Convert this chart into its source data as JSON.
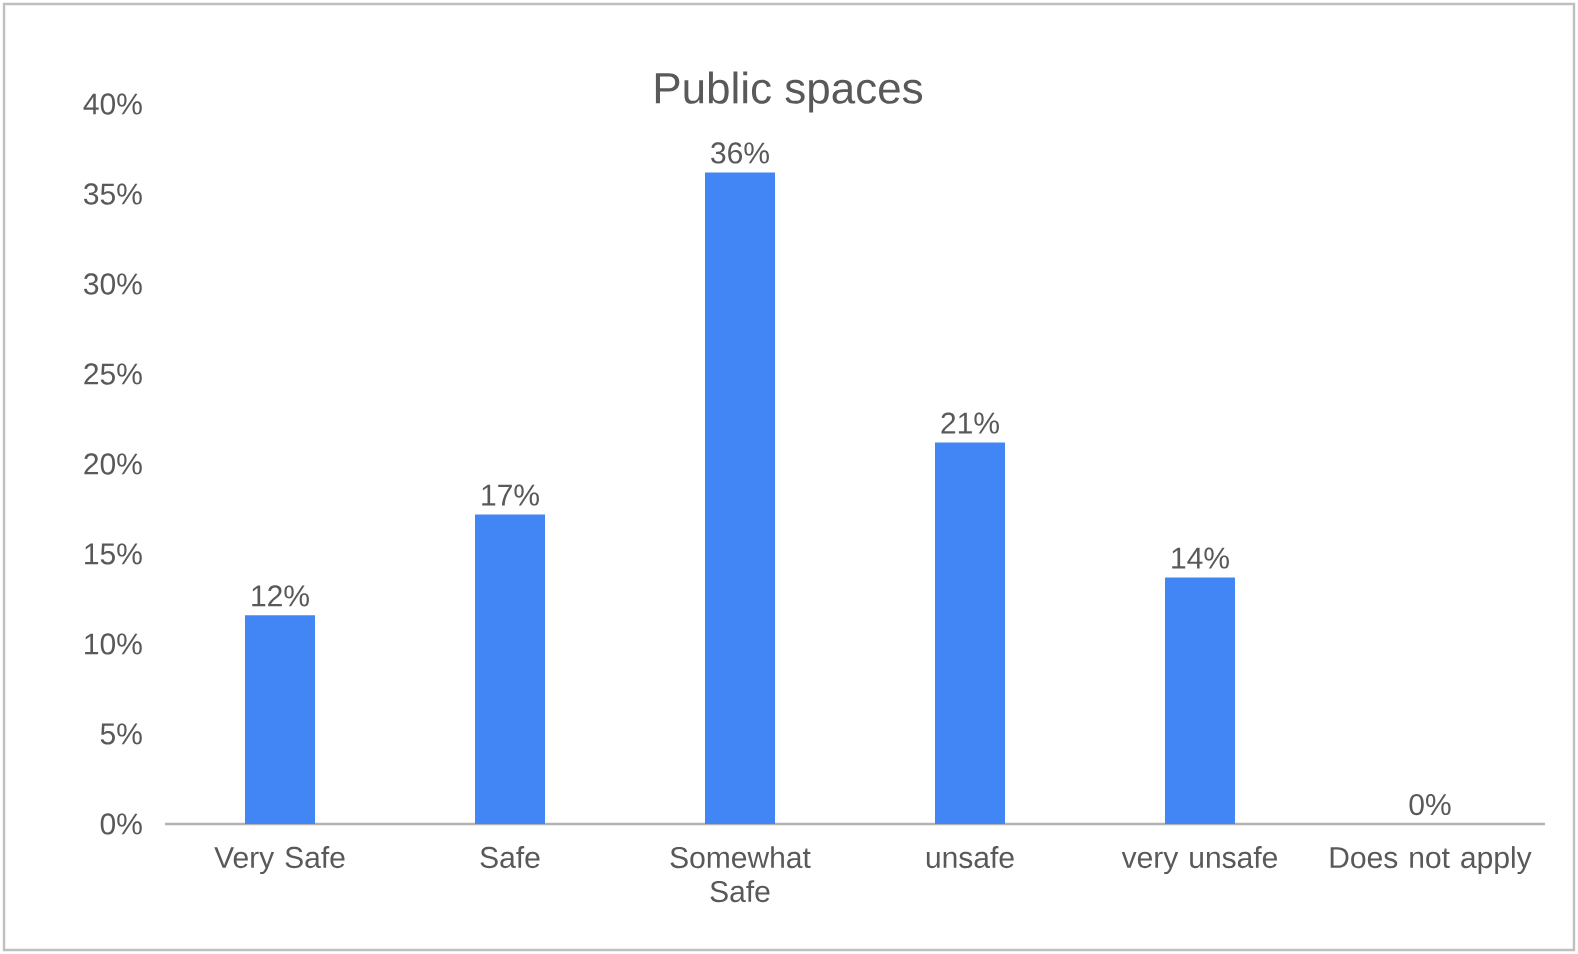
{
  "chart_data": {
    "type": "bar",
    "title": "Public spaces",
    "categories": [
      "Very Safe",
      "Safe",
      "Somewhat Safe",
      "unsafe",
      "very unsafe",
      "Does not apply"
    ],
    "values": [
      11.6,
      17.2,
      36.2,
      21.2,
      13.7,
      0
    ],
    "value_labels": [
      "12%",
      "17%",
      "36%",
      "21%",
      "14%",
      "0%"
    ],
    "color": "#4285f4",
    "ylim": [
      0,
      40
    ],
    "yticks": [
      {
        "value": 0,
        "label": "0%"
      },
      {
        "value": 5,
        "label": "5%"
      },
      {
        "value": 10,
        "label": "10%"
      },
      {
        "value": 15,
        "label": "15%"
      },
      {
        "value": 20,
        "label": "20%"
      },
      {
        "value": 25,
        "label": "25%"
      },
      {
        "value": 30,
        "label": "30%"
      },
      {
        "value": 35,
        "label": "35%"
      },
      {
        "value": 40,
        "label": "40%"
      }
    ]
  }
}
